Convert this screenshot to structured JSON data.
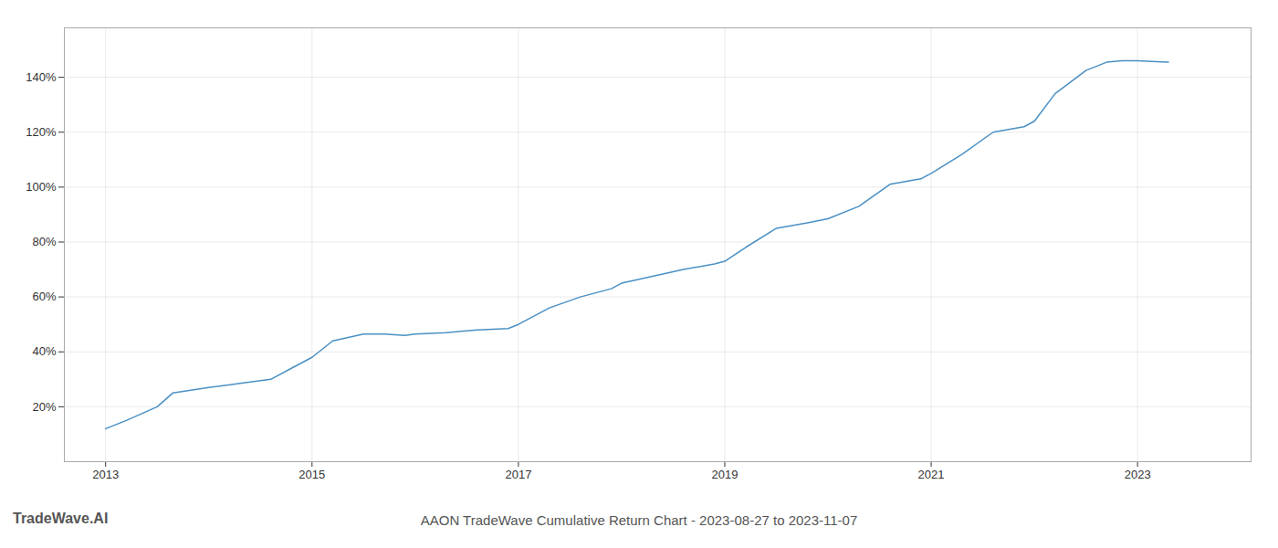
{
  "chart_data": {
    "type": "line",
    "title": "AAON TradeWave Cumulative Return Chart - 2023-08-27 to 2023-11-07",
    "annotations": [
      "TradeWave.AI"
    ],
    "color": "#4a90c4",
    "x": [
      2013.0,
      2013.2,
      2013.5,
      2013.65,
      2014.0,
      2014.3,
      2014.6,
      2014.8,
      2015.0,
      2015.2,
      2015.5,
      2015.7,
      2015.9,
      2016.0,
      2016.3,
      2016.6,
      2016.9,
      2017.0,
      2017.3,
      2017.6,
      2017.9,
      2018.0,
      2018.3,
      2018.6,
      2018.9,
      2019.0,
      2019.2,
      2019.5,
      2019.8,
      2020.0,
      2020.3,
      2020.6,
      2020.9,
      2021.0,
      2021.3,
      2021.6,
      2021.9,
      2022.0,
      2022.2,
      2022.5,
      2022.7,
      2022.85,
      2023.0,
      2023.3
    ],
    "values": [
      12.0,
      15.0,
      20.0,
      25.0,
      27.0,
      28.5,
      30.0,
      34.0,
      38.0,
      44.0,
      46.5,
      46.5,
      46.0,
      46.5,
      47.0,
      48.0,
      48.5,
      50.0,
      56.0,
      60.0,
      63.0,
      65.0,
      67.5,
      70.0,
      72.0,
      73.0,
      78.0,
      85.0,
      87.0,
      88.5,
      93.0,
      101.0,
      103.0,
      105.0,
      112.0,
      120.0,
      122.0,
      124.0,
      134.0,
      142.5,
      145.5,
      146.0,
      146.0,
      145.5
    ],
    "xlim": [
      2012.6,
      2024.1
    ],
    "ylim": [
      0,
      158
    ],
    "xticks": [
      2013,
      2015,
      2017,
      2019,
      2021,
      2023
    ],
    "yticks": [
      {
        "value": 20,
        "label": "20%"
      },
      {
        "value": 40,
        "label": "40%"
      },
      {
        "value": 60,
        "label": "60%"
      },
      {
        "value": 80,
        "label": "80%"
      },
      {
        "value": 100,
        "label": "100%"
      },
      {
        "value": 120,
        "label": "120%"
      },
      {
        "value": 140,
        "label": "140%"
      }
    ],
    "grid": true
  }
}
